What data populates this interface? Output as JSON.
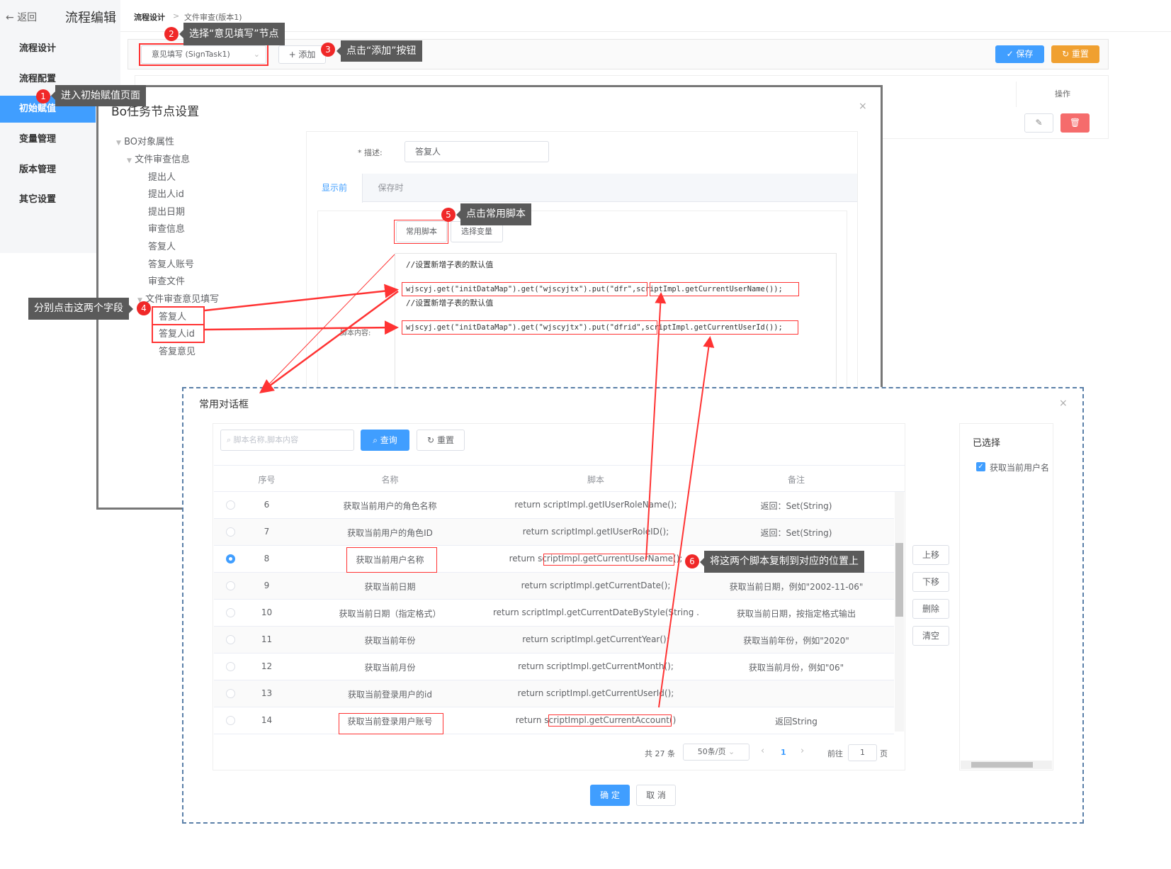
{
  "header": {
    "back": "返回",
    "title": "流程编辑",
    "breadcrumb": [
      "流程设计",
      "文件审查(版本1)"
    ]
  },
  "sidebar": {
    "items": [
      {
        "label": "流程设计"
      },
      {
        "label": "流程配置"
      },
      {
        "label": "初始赋值",
        "active": true
      },
      {
        "label": "变量管理"
      },
      {
        "label": "版本管理"
      },
      {
        "label": "其它设置"
      }
    ]
  },
  "toolbar": {
    "node_select": "意见填写 (SignTask1)",
    "add": "+ 添加",
    "save": "✓ 保存",
    "reset": "↻ 重置",
    "op_header": "操作"
  },
  "annotations": [
    {
      "n": "1",
      "text": "进入初始赋值页面"
    },
    {
      "n": "2",
      "text": "选择“意见填写”节点"
    },
    {
      "n": "3",
      "text": "点击“添加”按钮"
    },
    {
      "n": "4",
      "text": "分别点击这两个字段"
    },
    {
      "n": "5",
      "text": "点击常用脚本"
    },
    {
      "n": "6",
      "text": "将这两个脚本复制到对应的位置上"
    }
  ],
  "bo_dialog": {
    "title": "Bo任务节点设置",
    "close": "×",
    "tree": {
      "root": "BO对象属性",
      "group1": "文件审查信息",
      "group1_items": [
        "提出人",
        "提出人id",
        "提出日期",
        "审查信息",
        "答复人",
        "答复人账号",
        "审查文件"
      ],
      "group2": "文件审查意见填写",
      "group2_items": [
        "答复人",
        "答复人id",
        "答复意见"
      ]
    },
    "desc_label": "* 描述:",
    "desc_value": "答复人",
    "tabs": [
      "显示前",
      "保存时"
    ],
    "sub_buttons": [
      "常用脚本",
      "选择变量"
    ],
    "script_label": "脚本内容:",
    "code": [
      "//设置新增子表的默认值",
      "wjscyj.get(\"initDataMap\").get(\"wjscyjtx\").put(\"dfr\",scriptImpl.getCurrentUserName());",
      "//设置新增子表的默认值",
      "wjscyj.get(\"initDataMap\").get(\"wjscyjtx\").put(\"dfrid\",scriptImpl.getCurrentUserId());"
    ]
  },
  "script_dialog": {
    "title": "常用对话框",
    "close": "×",
    "search_placeholder": "脚本名称,脚本内容",
    "query": "查询",
    "reset": "重置",
    "columns": [
      "序号",
      "名称",
      "脚本",
      "备注"
    ],
    "rows": [
      {
        "no": "6",
        "name": "获取当前用户的角色名称",
        "script": "return scriptImpl.getIUserRoleName();",
        "note": "返回：Set(String)"
      },
      {
        "no": "7",
        "name": "获取当前用户的角色ID",
        "script": "return scriptImpl.getIUserRoleID();",
        "note": "返回：Set(String)"
      },
      {
        "no": "8",
        "name": "获取当前用户名称",
        "script": "return scriptImpl.getCurrentUserName();",
        "note": "",
        "selected": true
      },
      {
        "no": "9",
        "name": "获取当前日期",
        "script": "return scriptImpl.getCurrentDate();",
        "note": "获取当前日期，例如\"2002-11-06\""
      },
      {
        "no": "10",
        "name": "获取当前日期（指定格式）",
        "script": "return scriptImpl.getCurrentDateByStyle(String ...",
        "note": "获取当前日期，按指定格式输出"
      },
      {
        "no": "11",
        "name": "获取当前年份",
        "script": "return scriptImpl.getCurrentYear();",
        "note": "获取当前年份，例如\"2020\""
      },
      {
        "no": "12",
        "name": "获取当前月份",
        "script": "return scriptImpl.getCurrentMonth();",
        "note": "获取当前月份，例如\"06\""
      },
      {
        "no": "13",
        "name": "获取当前登录用户的id",
        "script": "return scriptImpl.getCurrentUserId();",
        "note": ""
      },
      {
        "no": "14",
        "name": "获取当前登录用户账号",
        "script": "return scriptImpl.getCurrentAccount()",
        "note": "返回String"
      }
    ],
    "pagination": {
      "total": "共 27 条",
      "page_size": "50条/页",
      "current": "1",
      "goto": "前往",
      "goto_value": "1",
      "page_unit": "页"
    },
    "side_buttons": [
      "上移",
      "下移",
      "删除",
      "清空"
    ],
    "selected_title": "已选择",
    "selected_items": [
      "获取当前用户名"
    ],
    "ok": "确 定",
    "cancel": "取 消"
  },
  "colors": {
    "primary": "#409eff",
    "warning": "#f0a030",
    "annotation": "#f02828"
  }
}
